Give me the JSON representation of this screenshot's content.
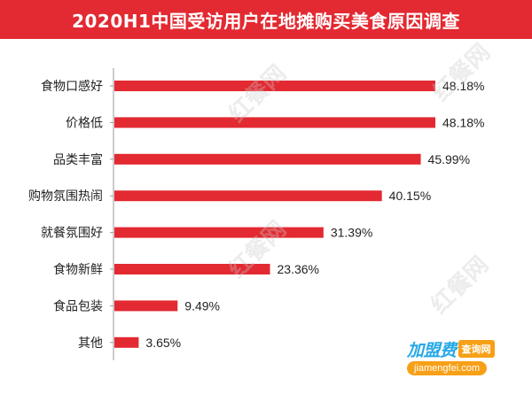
{
  "chart_data": {
    "type": "bar",
    "orientation": "horizontal",
    "title": "2020H1中国受访用户在地摊购买美食原因调查",
    "categories": [
      "食物口感好",
      "价格低",
      "品类丰富",
      "购物氛围热闹",
      "就餐氛围好",
      "食物新鲜",
      "食品包装",
      "其他"
    ],
    "values": [
      48.18,
      48.18,
      45.99,
      40.15,
      31.39,
      23.36,
      9.49,
      3.65
    ],
    "value_labels": [
      "48.18%",
      "48.18%",
      "45.99%",
      "40.15%",
      "31.39%",
      "23.36%",
      "9.49%",
      "3.65%"
    ],
    "value_unit": "%",
    "xlim": [
      0,
      48.18
    ],
    "grid": false,
    "legend": "none",
    "bar_color": "#e32931",
    "title_bg_color": "#e32931",
    "axis_color": "#999999"
  },
  "watermark": {
    "text": "红餐网"
  },
  "badge": {
    "brand": "加盟费",
    "tag": "查询网",
    "url": "jiamengfei.com",
    "brand_color": "#27a9e6",
    "tag_color": "#f7a017"
  }
}
